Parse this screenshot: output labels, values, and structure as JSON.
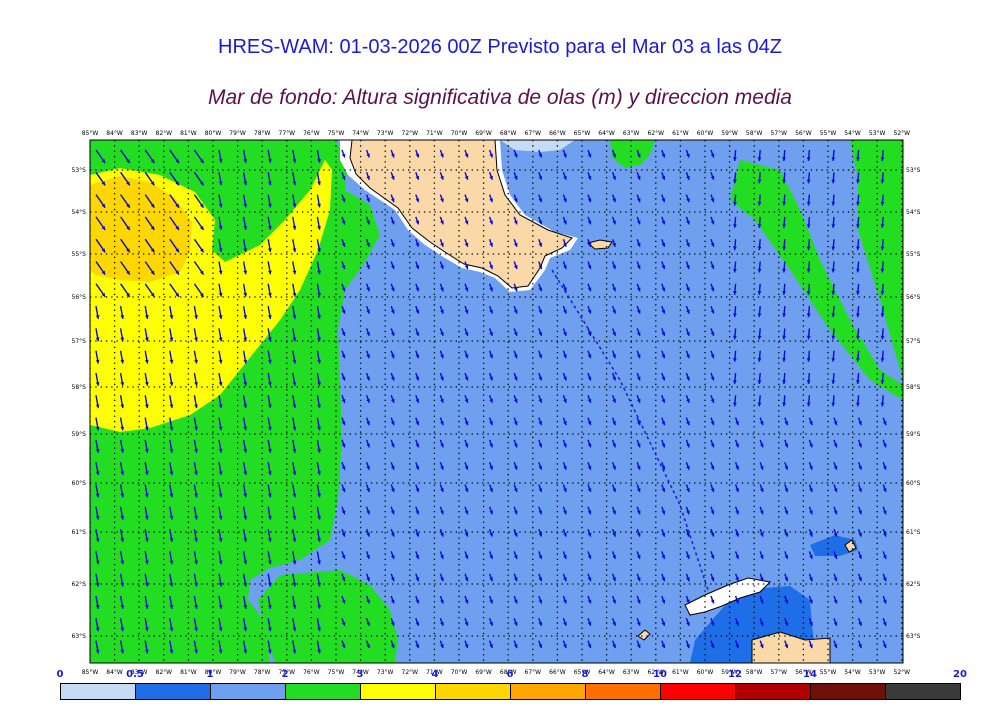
{
  "title": "HRES-WAM: 01-03-2026 00Z Previsto para el Mar 03 a las 04Z",
  "subtitle": "Mar de fondo: Altura significativa de olas (m) y direccion media",
  "map": {
    "lon_labels": [
      "85°W",
      "84°W",
      "83°W",
      "82°W",
      "81°W",
      "80°W",
      "79°W",
      "78°W",
      "77°W",
      "76°W",
      "75°W",
      "74°W",
      "73°W",
      "72°W",
      "71°W",
      "70°W",
      "69°W",
      "68°W",
      "67°W",
      "66°W",
      "65°W",
      "64°W",
      "63°W",
      "62°W",
      "61°W",
      "60°W",
      "59°W",
      "58°W",
      "57°W",
      "56°W",
      "55°W",
      "54°W",
      "53°W",
      "52°W"
    ],
    "lat_labels": [
      "53°S",
      "54°S",
      "55°S",
      "56°S",
      "57°S",
      "58°S",
      "59°S",
      "60°S",
      "61°S",
      "62°S",
      "63°S"
    ],
    "colors": {
      "land": "#fad8a8",
      "band_1_2": "#6fa0f0",
      "band_2_3": "#22dd22",
      "band_3_4": "#ffff00",
      "band_4_6": "#ffd700",
      "band_1": "#1e6ee8",
      "arrow": "#0a0ad0"
    },
    "arrow_icon": "wave-direction-arrow"
  },
  "legend": {
    "labels": [
      "0",
      "0.5",
      "1",
      "2",
      "3",
      "4",
      "6",
      "8",
      "10",
      "12",
      "14",
      "20"
    ],
    "colors": [
      "#c6dcf6",
      "#1e6ee8",
      "#6fa0f0",
      "#22dd22",
      "#ffff00",
      "#ffd700",
      "#ffa500",
      "#ff7000",
      "#ff0000",
      "#b00000",
      "#6e1008",
      "#3a3a3a"
    ]
  }
}
